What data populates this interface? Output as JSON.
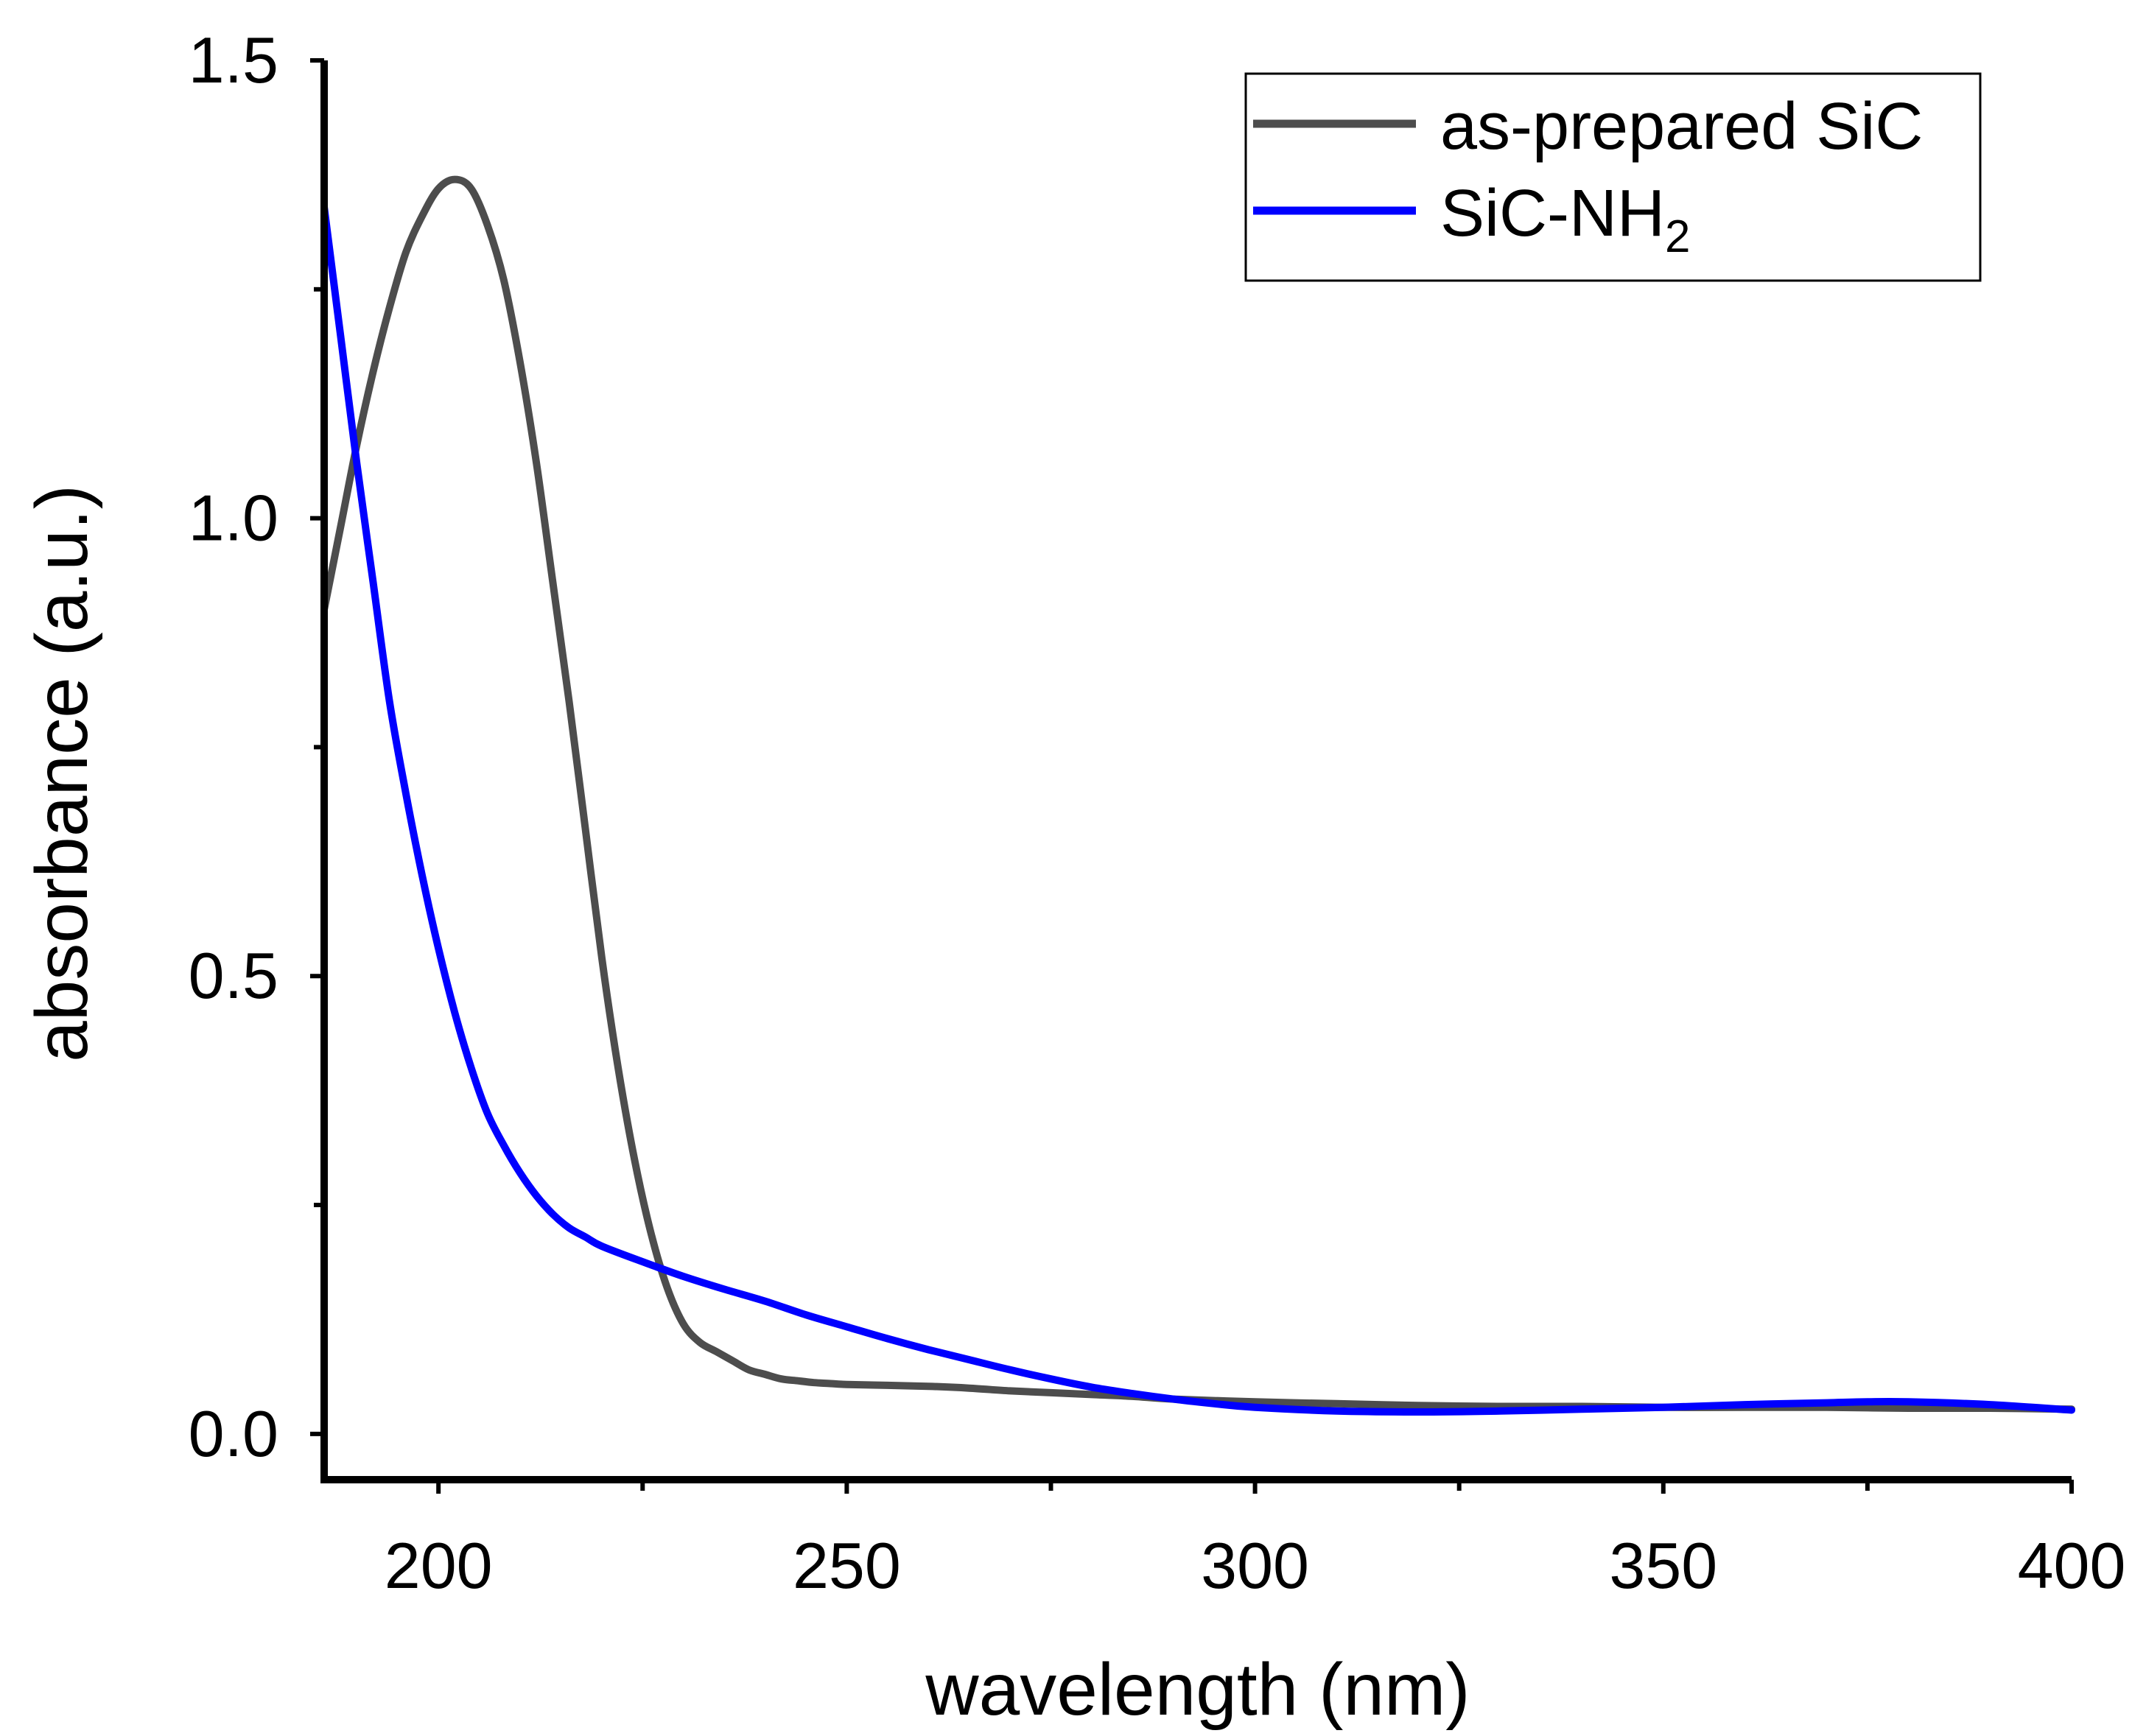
{
  "chart_data": {
    "type": "line",
    "title": "",
    "xlabel": "wavelength (nm)",
    "ylabel": "absorbance (a.u.)",
    "xlim": [
      186,
      400
    ],
    "ylim": [
      -0.05,
      1.5
    ],
    "x_ticks": [
      200,
      250,
      300,
      350,
      400
    ],
    "x_tick_labels": [
      "200",
      "250",
      "300",
      "350",
      "400"
    ],
    "x_minor_ticks": [
      225,
      275,
      325,
      375
    ],
    "y_ticks": [
      0.0,
      0.5,
      1.0,
      1.5
    ],
    "y_tick_labels": [
      "0.0",
      "0.5",
      "1.0",
      "1.5"
    ],
    "y_minor_ticks": [
      0.25,
      0.75,
      1.25
    ],
    "legend": {
      "position": "top-right",
      "entries": [
        {
          "label": "as-prepared SiC",
          "series_index": 0
        },
        {
          "label_main": "SiC-NH",
          "label_sub": "2",
          "series_index": 1
        }
      ]
    },
    "series": [
      {
        "name": "as-prepared SiC",
        "color": "#4d4d4d",
        "x": [
          186,
          188,
          190,
          192,
          194,
          196,
          198,
          200,
          202,
          204,
          206,
          208,
          210,
          212,
          214,
          216,
          218,
          220,
          222,
          224,
          226,
          228,
          230,
          232,
          234,
          236,
          238,
          240,
          242,
          244,
          246,
          248,
          250,
          255,
          260,
          265,
          270,
          275,
          280,
          285,
          290,
          300,
          310,
          320,
          330,
          340,
          350,
          360,
          370,
          380,
          390,
          400
        ],
        "y": [
          0.9,
          0.99,
          1.08,
          1.16,
          1.23,
          1.29,
          1.33,
          1.36,
          1.37,
          1.36,
          1.32,
          1.26,
          1.17,
          1.06,
          0.93,
          0.8,
          0.66,
          0.52,
          0.4,
          0.3,
          0.22,
          0.16,
          0.12,
          0.1,
          0.09,
          0.08,
          0.07,
          0.065,
          0.06,
          0.058,
          0.056,
          0.055,
          0.054,
          0.053,
          0.052,
          0.05,
          0.047,
          0.045,
          0.043,
          0.041,
          0.038,
          0.035,
          0.033,
          0.031,
          0.03,
          0.03,
          0.029,
          0.029,
          0.029,
          0.028,
          0.028,
          0.027
        ]
      },
      {
        "name": "SiC-NH2",
        "color": "#0000ff",
        "x": [
          186,
          188,
          190,
          192,
          194,
          196,
          198,
          200,
          202,
          204,
          206,
          208,
          210,
          212,
          214,
          216,
          218,
          220,
          225,
          230,
          235,
          240,
          245,
          250,
          255,
          260,
          265,
          270,
          275,
          280,
          285,
          290,
          295,
          300,
          310,
          320,
          330,
          340,
          350,
          360,
          370,
          375,
          380,
          390,
          400
        ],
        "y": [
          1.34,
          1.2,
          1.06,
          0.93,
          0.8,
          0.7,
          0.61,
          0.53,
          0.46,
          0.4,
          0.35,
          0.315,
          0.285,
          0.26,
          0.24,
          0.225,
          0.215,
          0.205,
          0.188,
          0.172,
          0.158,
          0.145,
          0.13,
          0.117,
          0.104,
          0.092,
          0.081,
          0.07,
          0.06,
          0.051,
          0.044,
          0.038,
          0.033,
          0.029,
          0.025,
          0.024,
          0.025,
          0.027,
          0.029,
          0.032,
          0.034,
          0.035,
          0.035,
          0.032,
          0.026
        ]
      }
    ]
  }
}
